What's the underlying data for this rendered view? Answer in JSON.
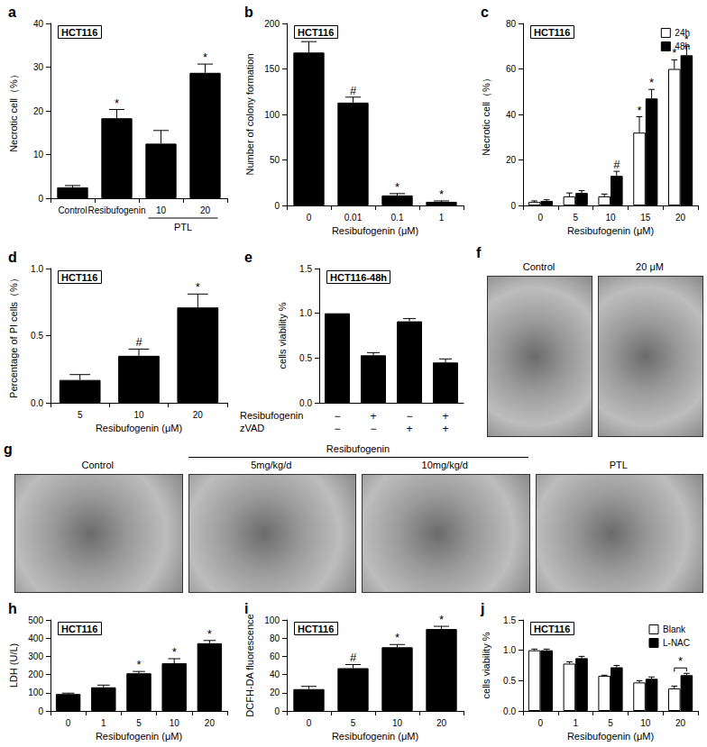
{
  "chart_data": [
    {
      "panel": "a",
      "type": "bar",
      "title": "HCT116",
      "ylabel": "Necrotic cell（%）",
      "categories": [
        "Control",
        "Resibufogenin",
        "10",
        "20"
      ],
      "x_group": {
        "label": "PTL",
        "categories": [
          "10",
          "20"
        ]
      },
      "values": [
        2.5,
        18.3,
        12.5,
        28.7
      ],
      "errors": [
        0.4,
        2.0,
        3.0,
        2.0
      ],
      "annotations": [
        null,
        "*",
        null,
        "*"
      ],
      "color": "#000000",
      "ylim": [
        0,
        40
      ],
      "yticks": [
        0,
        10,
        20,
        30,
        40
      ],
      "grid": false
    },
    {
      "panel": "b",
      "type": "bar",
      "title": "HCT116",
      "ylabel": "Number of colony formation",
      "xlabel": "Resibufogenin (μM)",
      "categories": [
        "0",
        "0.01",
        "0.1",
        "1"
      ],
      "values": [
        168,
        113,
        11,
        4
      ],
      "errors": [
        12,
        6,
        2,
        1
      ],
      "annotations": [
        null,
        "#",
        "*",
        "*"
      ],
      "color": "#000000",
      "ylim": [
        0,
        200
      ],
      "yticks": [
        0,
        50,
        100,
        150,
        200
      ],
      "grid": false
    },
    {
      "panel": "c",
      "type": "bar",
      "title": "HCT116",
      "ylabel": "Necrotic cell（%）",
      "xlabel": "Resibufogenin (μM)",
      "categories": [
        "0",
        "5",
        "10",
        "15",
        "20"
      ],
      "series": [
        {
          "name": "24h",
          "color": "#ffffff",
          "values": [
            1.5,
            4,
            4,
            32,
            60
          ],
          "errors": [
            0.5,
            1.5,
            1,
            7,
            4
          ],
          "annotations": [
            null,
            null,
            null,
            "*",
            "*"
          ]
        },
        {
          "name": "48h",
          "color": "#000000",
          "values": [
            2,
            5.5,
            13,
            47,
            66
          ],
          "errors": [
            0.5,
            1,
            2,
            4,
            4
          ],
          "annotations": [
            null,
            null,
            "#",
            "*",
            "*"
          ]
        }
      ],
      "legend": "upper right",
      "ylim": [
        0,
        80
      ],
      "yticks": [
        0,
        20,
        40,
        60,
        80
      ],
      "grid": false
    },
    {
      "panel": "d",
      "type": "bar",
      "title": "HCT116",
      "ylabel": "Percentage of PI cells（%）",
      "xlabel": "Resibufogenin (μM)",
      "categories": [
        "5",
        "10",
        "20"
      ],
      "values": [
        0.17,
        0.35,
        0.71
      ],
      "errors": [
        0.04,
        0.05,
        0.1
      ],
      "annotations": [
        null,
        "#",
        "*"
      ],
      "color": "#000000",
      "ylim": [
        0,
        1.0
      ],
      "yticks": [
        {
          "value": 0,
          "label": "0.0"
        },
        {
          "value": 0.5,
          "label": "0.5"
        },
        {
          "value": 1,
          "label": "1.0"
        }
      ],
      "grid": false
    },
    {
      "panel": "e",
      "type": "bar",
      "title": "HCT116-48h",
      "ylabel": "cells viability %",
      "categories": [
        null,
        null,
        null,
        null
      ],
      "conditions": [
        {
          "name": "Resibufogenin",
          "signs": [
            "−",
            "+",
            "−",
            "+"
          ]
        },
        {
          "name": "zVAD",
          "signs": [
            "−",
            "−",
            "+",
            "+"
          ]
        }
      ],
      "values": [
        1.0,
        0.53,
        0.91,
        0.45
      ],
      "errors": [
        0,
        0.03,
        0.03,
        0.04
      ],
      "color": "#000000",
      "ylim": [
        0,
        1.5
      ],
      "yticks": [
        {
          "value": 0,
          "label": "0.0"
        },
        {
          "value": 0.5,
          "label": "0.5"
        },
        {
          "value": 1,
          "label": "1.0"
        },
        {
          "value": 1.5,
          "label": "1.5"
        }
      ],
      "grid": false
    },
    {
      "panel": "h",
      "type": "bar",
      "title": "HCT116",
      "ylabel": "LDH (U/L)",
      "xlabel": "Resibufogenin (μM)",
      "categories": [
        "0",
        "1",
        "5",
        "10",
        "20"
      ],
      "values": [
        93,
        130,
        207,
        262,
        372
      ],
      "errors": [
        5,
        12,
        10,
        25,
        15
      ],
      "annotations": [
        null,
        null,
        "*",
        "*",
        "*"
      ],
      "color": "#000000",
      "ylim": [
        0,
        500
      ],
      "yticks": [
        0,
        100,
        200,
        300,
        400,
        500
      ],
      "grid": false
    },
    {
      "panel": "i",
      "type": "bar",
      "title": "HCT116",
      "ylabel": "DCFH-DA fluorescence",
      "xlabel": "Resibufogenin (μM)",
      "categories": [
        "0",
        "5",
        "10",
        "20"
      ],
      "values": [
        24,
        47,
        70,
        90
      ],
      "errors": [
        3,
        4,
        3,
        3
      ],
      "annotations": [
        null,
        "#",
        "*",
        "*"
      ],
      "color": "#000000",
      "ylim": [
        0,
        100
      ],
      "yticks": [
        0,
        20,
        40,
        60,
        80,
        100
      ],
      "grid": false
    },
    {
      "panel": "j",
      "type": "bar",
      "title": "HCT116",
      "ylabel": "cells viability %",
      "xlabel": "Resibufogenin (μM)",
      "categories": [
        "0",
        "1",
        "5",
        "10",
        "20"
      ],
      "series": [
        {
          "name": "Blank",
          "color": "#ffffff",
          "values": [
            1.0,
            0.78,
            0.58,
            0.47,
            0.37
          ],
          "errors": [
            0.02,
            0.03,
            0.01,
            0.03,
            0.04
          ]
        },
        {
          "name": "L-NAC",
          "color": "#000000",
          "values": [
            1.0,
            0.87,
            0.72,
            0.53,
            0.59
          ],
          "errors": [
            0.02,
            0.03,
            0.03,
            0.03,
            0.03
          ]
        }
      ],
      "comparisons": [
        {
          "category": "20",
          "text": "*"
        }
      ],
      "legend": "upper right",
      "ylim": [
        0,
        1.5
      ],
      "yticks": [
        {
          "value": 0,
          "label": "0.0"
        },
        {
          "value": 0.5,
          "label": "0.5"
        },
        {
          "value": 1,
          "label": "1.0"
        },
        {
          "value": 1.5,
          "label": "1.5"
        }
      ],
      "grid": false
    }
  ],
  "images": [
    {
      "panel": "f",
      "labels": [
        "Control",
        "20 μM"
      ]
    },
    {
      "panel": "g",
      "group_label": "Resibufogenin",
      "group": [
        "5mg/kg/d",
        "10mg/kg/d"
      ],
      "labels": [
        "Control",
        "5mg/kg/d",
        "10mg/kg/d",
        "PTL"
      ]
    }
  ]
}
